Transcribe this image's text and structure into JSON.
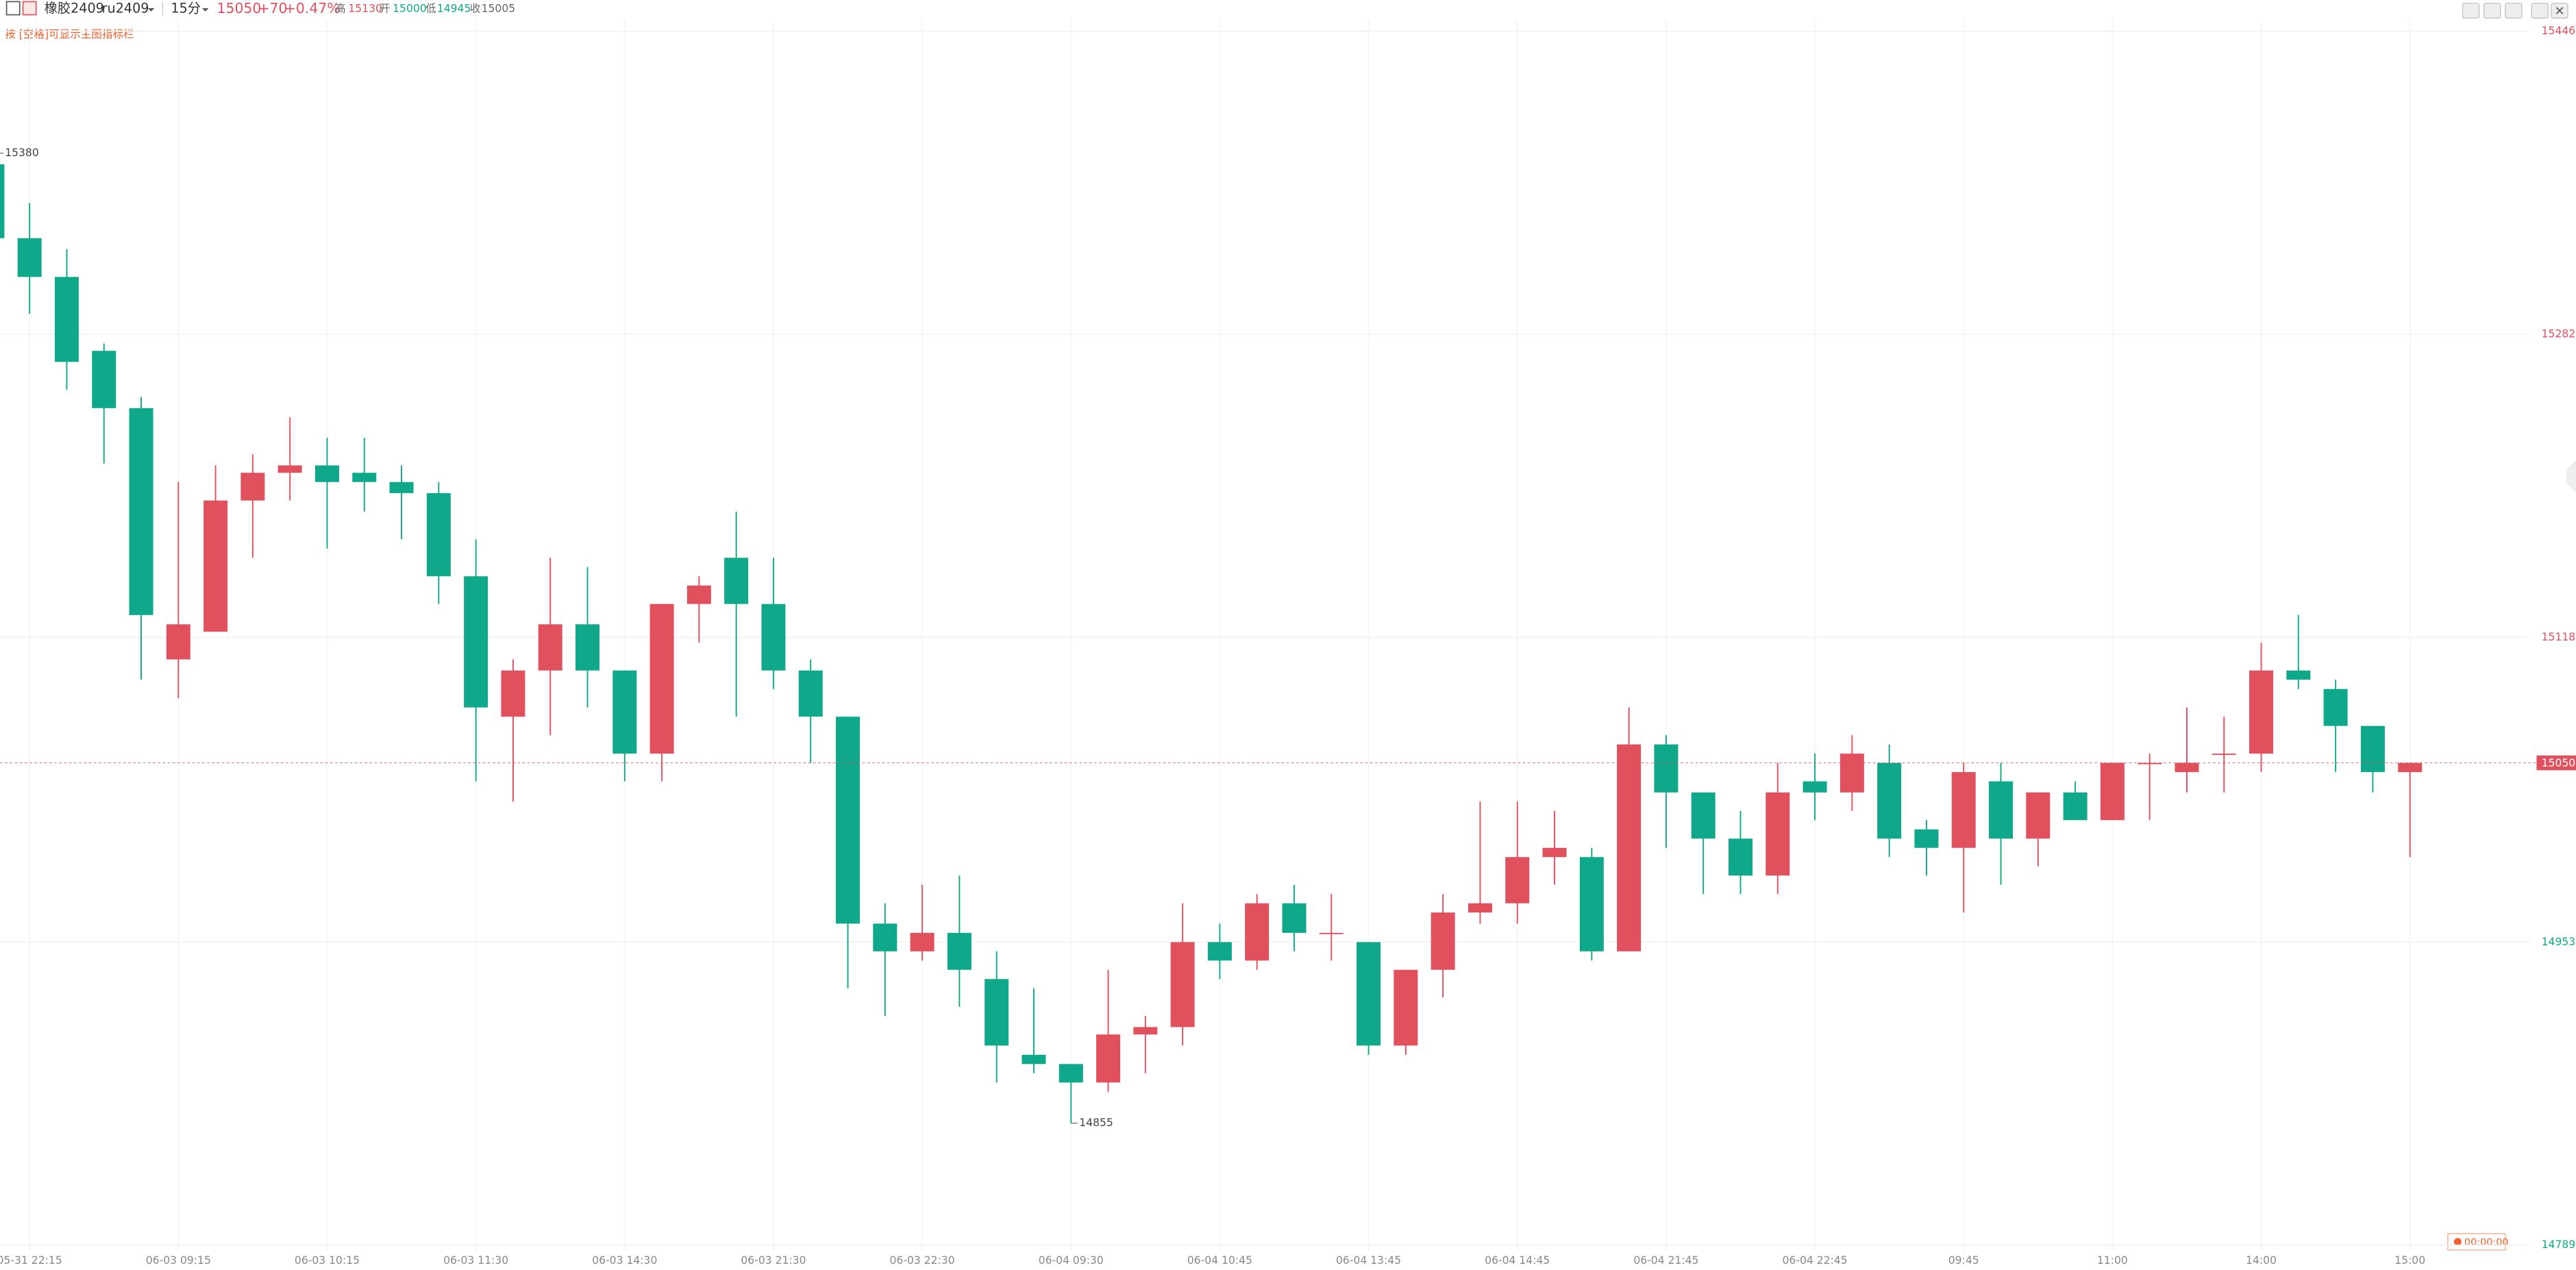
{
  "header": {
    "name": "橡胶2409",
    "code": "ru2409",
    "period": "15分",
    "price": "15050",
    "change": "+70",
    "change_pct": "+0.47%",
    "high_label": "高",
    "high": "15130",
    "open_label": "开",
    "open": "15000",
    "low_label": "低",
    "low": "14945",
    "close_label": "收",
    "close": "15005",
    "hint": "按 [空格]可显示主图指标栏",
    "timer": "00:00:00"
  },
  "chart_data": {
    "type": "candlestick",
    "categories": [
      null,
      "05-31 22:15",
      null,
      null,
      null,
      "06-03 09:15",
      null,
      null,
      null,
      "06-03 10:15",
      null,
      null,
      null,
      "06-03 11:30",
      null,
      null,
      null,
      "06-03 14:30",
      null,
      null,
      null,
      "06-03 21:30",
      null,
      null,
      null,
      "06-03 22:30",
      null,
      null,
      null,
      "06-04 09:30",
      null,
      null,
      null,
      "06-04 10:45",
      null,
      null,
      null,
      "06-04 13:45",
      null,
      null,
      null,
      "06-04 14:45",
      null,
      null,
      null,
      "06-04 21:45",
      null,
      null,
      null,
      "06-04 22:45",
      null,
      null,
      null,
      "09:45",
      null,
      null,
      null,
      "11:00",
      null,
      null,
      null,
      "14:00",
      null,
      null,
      null,
      "15:00"
    ],
    "open": [
      15374,
      15334,
      15313,
      15273,
      15242,
      15106,
      15121,
      15192,
      15207,
      15211,
      15207,
      15202,
      15196,
      15151,
      15075,
      15100,
      15125,
      15100,
      15055,
      15136,
      15161,
      15136,
      15100,
      15075,
      14963,
      14948,
      14958,
      14933,
      14892,
      14887,
      14877,
      14903,
      14907,
      14953,
      14943,
      14974,
      14958,
      14953,
      14897,
      14938,
      14969,
      14974,
      14999,
      14999,
      14948,
      15060,
      15034,
      15009,
      14989,
      15040,
      15034,
      15050,
      15014,
      15004,
      15040,
      15009,
      15034,
      15019,
      15050,
      15045,
      15055,
      15055,
      15100,
      15090,
      15070,
      15045
    ],
    "high": [
      15380,
      15353,
      15328,
      15277,
      15248,
      15202,
      15211,
      15217,
      15237,
      15226,
      15226,
      15211,
      15202,
      15171,
      15106,
      15161,
      15156,
      15100,
      15136,
      15151,
      15186,
      15161,
      15106,
      15075,
      14974,
      14984,
      14989,
      14948,
      14928,
      14887,
      14938,
      14913,
      14974,
      14963,
      14979,
      14984,
      14979,
      14953,
      14938,
      14979,
      15029,
      15029,
      15024,
      15004,
      15080,
      15065,
      15034,
      15024,
      15050,
      15055,
      15065,
      15060,
      15019,
      15050,
      15050,
      15034,
      15040,
      15050,
      15055,
      15080,
      15075,
      15115,
      15130,
      15095,
      15070,
      15050
    ],
    "low": [
      15334,
      15293,
      15252,
      15212,
      15095,
      15085,
      15121,
      15161,
      15192,
      15166,
      15186,
      15171,
      15136,
      15040,
      15029,
      15065,
      15080,
      15040,
      15040,
      15115,
      15075,
      15090,
      15050,
      14928,
      14913,
      14943,
      14918,
      14877,
      14882,
      14855,
      14872,
      14882,
      14897,
      14933,
      14938,
      14948,
      14943,
      14892,
      14892,
      14923,
      14963,
      14963,
      14984,
      14943,
      14948,
      15004,
      14979,
      14979,
      14979,
      15019,
      15024,
      14999,
      14989,
      14969,
      14984,
      14994,
      15019,
      15019,
      15019,
      15034,
      15034,
      15045,
      15090,
      15045,
      15034,
      14999
    ],
    "close": [
      15334,
      15313,
      15267,
      15242,
      15130,
      15125,
      15192,
      15207,
      15211,
      15202,
      15202,
      15196,
      15151,
      15080,
      15100,
      15125,
      15100,
      15055,
      15136,
      15146,
      15136,
      15100,
      15075,
      14963,
      14948,
      14958,
      14938,
      14897,
      14887,
      14877,
      14903,
      14907,
      14953,
      14943,
      14974,
      14958,
      14958,
      14897,
      14938,
      14969,
      14974,
      14999,
      15004,
      14948,
      15060,
      15034,
      15009,
      14989,
      15034,
      15034,
      15055,
      15009,
      15004,
      15045,
      15009,
      15034,
      15019,
      15050,
      15050,
      15050,
      15055,
      15100,
      15095,
      15070,
      15045,
      15050
    ],
    "ylim": [
      14789,
      15446
    ],
    "yticks": [
      14789,
      14953,
      15118,
      15282,
      15446
    ],
    "up_color": "#e0505d",
    "down_color": "#0fa88b",
    "grid": true,
    "last_price_line": true
  }
}
